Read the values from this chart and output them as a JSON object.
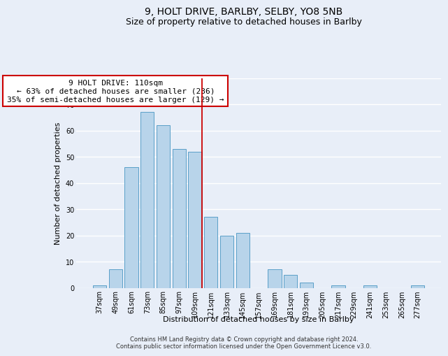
{
  "title": "9, HOLT DRIVE, BARLBY, SELBY, YO8 5NB",
  "subtitle": "Size of property relative to detached houses in Barlby",
  "xlabel": "Distribution of detached houses by size in Barlby",
  "ylabel": "Number of detached properties",
  "bar_labels": [
    "37sqm",
    "49sqm",
    "61sqm",
    "73sqm",
    "85sqm",
    "97sqm",
    "109sqm",
    "121sqm",
    "133sqm",
    "145sqm",
    "157sqm",
    "169sqm",
    "181sqm",
    "193sqm",
    "205sqm",
    "217sqm",
    "229sqm",
    "241sqm",
    "253sqm",
    "265sqm",
    "277sqm"
  ],
  "bar_values": [
    1,
    7,
    46,
    67,
    62,
    53,
    52,
    27,
    20,
    21,
    0,
    7,
    5,
    2,
    0,
    1,
    0,
    1,
    0,
    0,
    1
  ],
  "bar_color": "#b8d4ea",
  "bar_edge_color": "#5a9fc8",
  "reference_line_x_label": "109sqm",
  "reference_line_color": "#cc0000",
  "annotation_text": "9 HOLT DRIVE: 110sqm\n← 63% of detached houses are smaller (236)\n35% of semi-detached houses are larger (129) →",
  "annotation_box_color": "#ffffff",
  "annotation_box_edge_color": "#cc0000",
  "ylim": [
    0,
    80
  ],
  "yticks": [
    0,
    10,
    20,
    30,
    40,
    50,
    60,
    70,
    80
  ],
  "footer_line1": "Contains HM Land Registry data © Crown copyright and database right 2024.",
  "footer_line2": "Contains public sector information licensed under the Open Government Licence v3.0.",
  "background_color": "#e8eef8",
  "plot_bg_color": "#e8eef8",
  "grid_color": "#ffffff",
  "title_fontsize": 10,
  "subtitle_fontsize": 9,
  "axis_label_fontsize": 8,
  "tick_fontsize": 7,
  "annotation_fontsize": 8,
  "footer_fontsize": 6
}
